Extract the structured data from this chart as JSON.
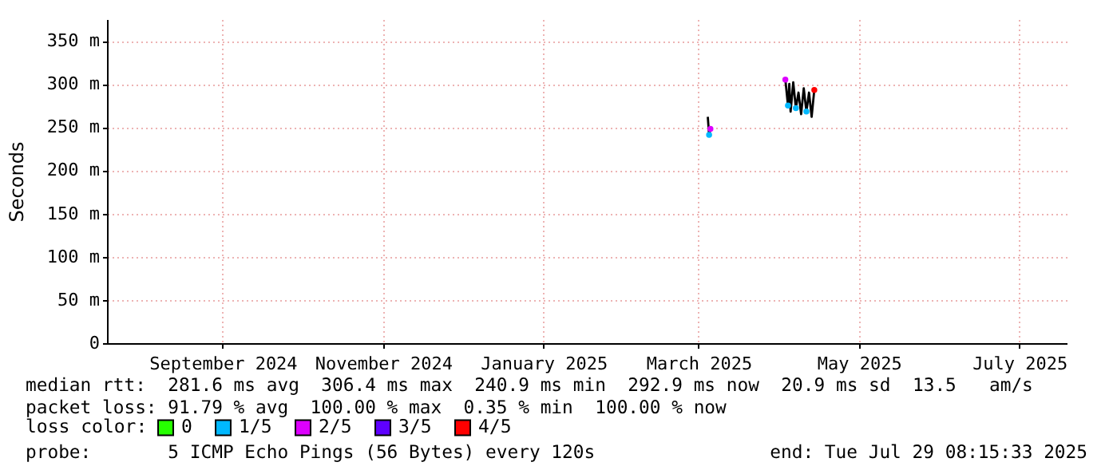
{
  "chart_data": {
    "type": "line",
    "ylabel": "Seconds",
    "legend_title": "loss color:",
    "legend": "bottom",
    "grid": true,
    "xlim": [
      "2024-08-03",
      "2025-08-03"
    ],
    "xticks": [
      {
        "value": "2024-09-16",
        "label": "September 2024"
      },
      {
        "value": "2024-11-16",
        "label": "November 2024"
      },
      {
        "value": "2025-01-16",
        "label": "January 2025"
      },
      {
        "value": "2025-03-16",
        "label": "March 2025"
      },
      {
        "value": "2025-05-16",
        "label": "May 2025"
      },
      {
        "value": "2025-07-16",
        "label": "July 2025"
      }
    ],
    "ylim": [
      0,
      375
    ],
    "yticks": [
      0,
      {
        "value": 50,
        "label": "50 m"
      },
      {
        "value": 100,
        "label": "100 m"
      },
      {
        "value": 150,
        "label": "150 m"
      },
      {
        "value": 200,
        "label": "200 m"
      },
      {
        "value": 250,
        "label": "250 m"
      },
      {
        "value": 300,
        "label": "300 m"
      },
      {
        "value": 350,
        "label": "350 m"
      }
    ],
    "series": [
      {
        "color": "#000000",
        "x": [
          "2025-03-19T12:00",
          "2025-03-20",
          "2025-03-20T12:00",
          "2025-03-21",
          "2025-04-18",
          "2025-04-19",
          "2025-04-19T12:00",
          "2025-04-20",
          "2025-04-21",
          "2025-04-22",
          "2025-04-23",
          "2025-04-24",
          "2025-04-25",
          "2025-04-26",
          "2025-04-27",
          "2025-04-28",
          "2025-04-29"
        ],
        "values": [
          262,
          241,
          248,
          null,
          305,
          275,
          300,
          268,
          302,
          272,
          290,
          265,
          295,
          268,
          290,
          262,
          293
        ]
      },
      {
        "type": "scatter",
        "name": "0",
        "color": "#26ff00"
      },
      {
        "type": "scatter",
        "name": "1/5",
        "color": "#00b8ff",
        "x": [
          "2025-03-20",
          "2025-04-19",
          "2025-04-22",
          "2025-04-26"
        ],
        "values": [
          241,
          275,
          272,
          268
        ]
      },
      {
        "type": "scatter",
        "name": "2/5",
        "color": "#dd00ff",
        "x": [
          "2025-03-20T12:00",
          "2025-04-18"
        ],
        "values": [
          248,
          305
        ]
      },
      {
        "type": "scatter",
        "name": "3/5",
        "color": "#5e00ff"
      },
      {
        "type": "scatter",
        "name": "4/5",
        "color": "#ff0000",
        "x": [
          "2025-04-29"
        ],
        "values": [
          293
        ]
      }
    ],
    "annotations": [
      "median rtt:  281.6 ms avg  306.4 ms max  240.9 ms min  292.9 ms now  20.9 ms sd  13.5   am/s",
      "packet loss: 91.79 % avg  100.00 % max  0.35 % min  100.00 % now",
      "probe:       5 ICMP Echo Pings (56 Bytes) every 120s",
      "end: Tue Jul 29 08:15:33 2025"
    ]
  }
}
